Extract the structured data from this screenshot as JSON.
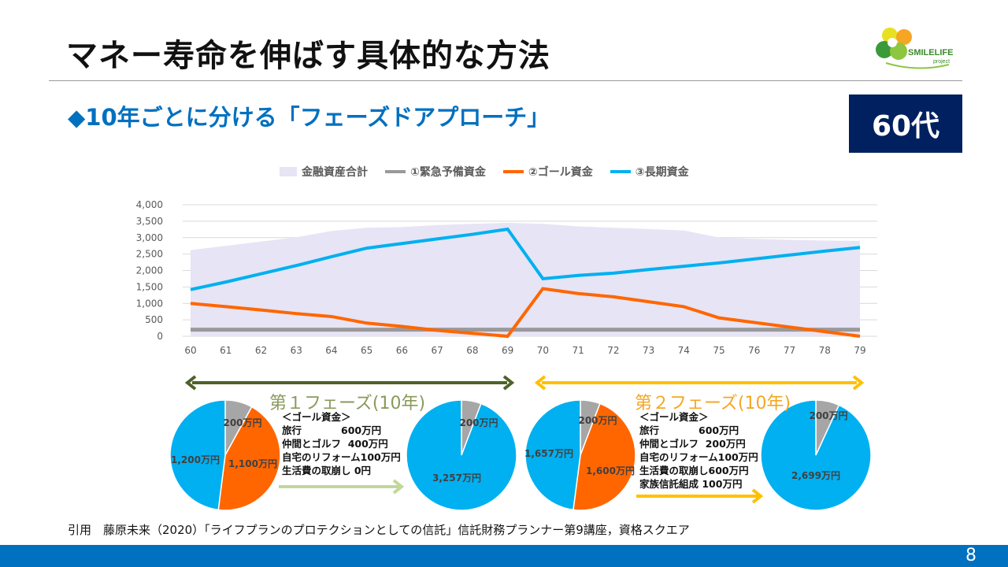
{
  "header": {
    "title": "マネー寿命を伸ばす具体的な方法",
    "subtitle": "◆10年ごとに分ける「フェーズドアプローチ」",
    "badge": "60代",
    "logo_text": "SMILELIFE",
    "logo_sub": "project"
  },
  "chart_data": {
    "type": "line",
    "x": [
      60,
      61,
      62,
      63,
      64,
      65,
      66,
      67,
      68,
      69,
      70,
      71,
      72,
      73,
      74,
      75,
      76,
      77,
      78,
      79
    ],
    "ylim": [
      0,
      4000
    ],
    "yticks": [
      "0",
      "500",
      "1,000",
      "1,500",
      "2,000",
      "2,500",
      "3,000",
      "3,500",
      "4,000"
    ],
    "grid": true,
    "legend_position": "top",
    "series": [
      {
        "name": "金融資産合計",
        "type": "area",
        "color": "#e6e4f5",
        "values": [
          2620,
          2750,
          2880,
          3010,
          3200,
          3300,
          3320,
          3380,
          3420,
          3450,
          3420,
          3340,
          3300,
          3260,
          3220,
          3000,
          2960,
          2930,
          2910,
          2900
        ]
      },
      {
        "name": "①緊急予備資金",
        "color": "#999999",
        "values": [
          200,
          200,
          200,
          200,
          200,
          200,
          200,
          200,
          200,
          200,
          200,
          200,
          200,
          200,
          200,
          200,
          200,
          200,
          200,
          200
        ]
      },
      {
        "name": "②ゴール資金",
        "color": "#ff6600",
        "values": [
          1000,
          900,
          800,
          690,
          600,
          400,
          300,
          180,
          90,
          0,
          1450,
          1300,
          1200,
          1050,
          900,
          560,
          420,
          280,
          140,
          0
        ]
      },
      {
        "name": "③長期資金",
        "color": "#00b0f0",
        "values": [
          1420,
          1650,
          1900,
          2150,
          2420,
          2680,
          2820,
          2960,
          3100,
          3257,
          1750,
          1850,
          1920,
          2030,
          2130,
          2230,
          2350,
          2470,
          2590,
          2700
        ]
      }
    ]
  },
  "phases": [
    {
      "label": "第１フェーズ(10年)",
      "color": "#4f6228",
      "label_color": "#8a9a5b",
      "arrow_color": "#c3d69b",
      "goal": "＜ゴール資金＞\n旅行　　　　600万円\n仲間とゴルフ  400万円\n自宅のリフォーム100万円\n生活費の取崩し 0円",
      "pie_before": [
        {
          "value": 200,
          "label": "200万円",
          "color": "#a6a6a6"
        },
        {
          "value": 1100,
          "label": "1,100万円",
          "color": "#ff6600"
        },
        {
          "value": 1200,
          "label": "1,200万円",
          "color": "#00b0f0"
        }
      ],
      "pie_after": [
        {
          "value": 200,
          "label": "200万円",
          "color": "#a6a6a6"
        },
        {
          "value": 3257,
          "label": "3,257万円",
          "color": "#00b0f0"
        }
      ]
    },
    {
      "label": "第２フェーズ(10年)",
      "color": "#ffc000",
      "label_color": "#f5a623",
      "arrow_color": "#ffc000",
      "goal": "＜ゴール資金＞\n旅行　　　　600万円\n仲間とゴルフ  200万円\n自宅のリフォーム100万円\n生活費の取崩し600万円\n家族信託組成 100万円",
      "pie_before": [
        {
          "value": 200,
          "label": "200万円",
          "color": "#a6a6a6"
        },
        {
          "value": 1600,
          "label": "1,600万円",
          "color": "#ff6600"
        },
        {
          "value": 1657,
          "label": "1,657万円",
          "color": "#00b0f0"
        }
      ],
      "pie_after": [
        {
          "value": 200,
          "label": "200万円",
          "color": "#a6a6a6"
        },
        {
          "value": 2699,
          "label": "2,699万円",
          "color": "#00b0f0"
        }
      ]
    }
  ],
  "footer": {
    "citation": "引用　藤原未来（2020）「ライフプランのプロテクションとしての信託」信託財務プランナー第9講座，資格スクエア",
    "page": "8"
  }
}
